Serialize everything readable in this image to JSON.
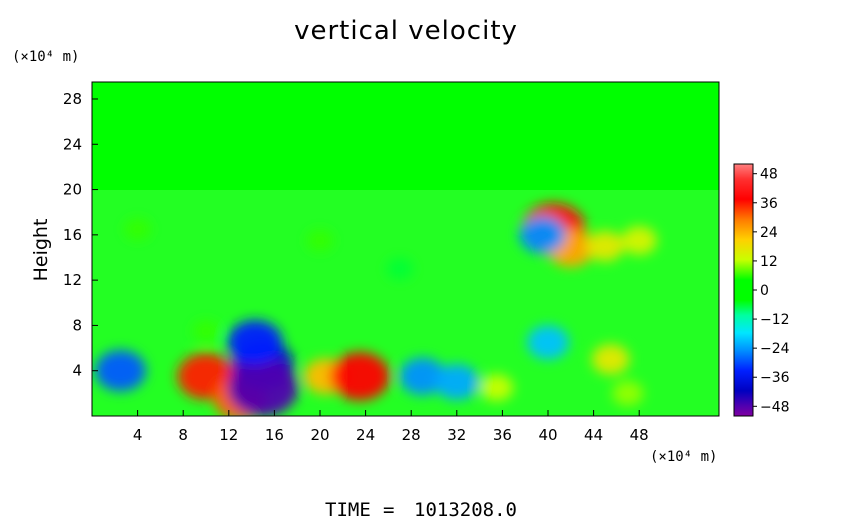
{
  "chart_data": {
    "type": "heatmap",
    "title": "vertical velocity",
    "ylabel": "Height",
    "x_unit_label": "(×10⁴ m)",
    "y_unit_label": "(×10⁴ m)",
    "x_ticks": [
      "4",
      "8",
      "12",
      "16",
      "20",
      "24",
      "28",
      "32",
      "36",
      "40",
      "44",
      "48"
    ],
    "x_tick_values": [
      4,
      8,
      12,
      16,
      20,
      24,
      28,
      32,
      36,
      40,
      44,
      48
    ],
    "xlim": [
      0,
      55
    ],
    "y_ticks": [
      "4",
      "8",
      "12",
      "16",
      "20",
      "24",
      "28"
    ],
    "y_tick_values": [
      4,
      8,
      12,
      16,
      20,
      24,
      28
    ],
    "ylim": [
      0,
      29.5
    ],
    "colorbar": {
      "ticks": [
        "48",
        "36",
        "24",
        "12",
        "0",
        "−12",
        "−24",
        "−36",
        "−48"
      ],
      "tick_values": [
        48,
        36,
        24,
        12,
        0,
        -12,
        -24,
        -36,
        -48
      ],
      "range": [
        -52,
        52
      ]
    },
    "background_value": 0,
    "features": [
      {
        "x": 2.5,
        "y": 4.0,
        "value": -28
      },
      {
        "x": 10.0,
        "y": 3.5,
        "value": 34
      },
      {
        "x": 13.0,
        "y": 1.5,
        "value": 30
      },
      {
        "x": 15.0,
        "y": 4.5,
        "value": -38
      },
      {
        "x": 15.0,
        "y": 2.5,
        "value": -46
      },
      {
        "x": 14.3,
        "y": 6.5,
        "value": -32
      },
      {
        "x": 20.5,
        "y": 3.5,
        "value": 22
      },
      {
        "x": 23.5,
        "y": 3.5,
        "value": 36
      },
      {
        "x": 20.0,
        "y": 15.5,
        "value": 6
      },
      {
        "x": 29.0,
        "y": 3.5,
        "value": -24
      },
      {
        "x": 32.0,
        "y": 3.0,
        "value": -22
      },
      {
        "x": 35.5,
        "y": 2.5,
        "value": 12
      },
      {
        "x": 40.5,
        "y": 16.5,
        "value": 40
      },
      {
        "x": 42.0,
        "y": 14.8,
        "value": 24
      },
      {
        "x": 39.5,
        "y": 16.0,
        "value": -24
      },
      {
        "x": 45.0,
        "y": 15.0,
        "value": 16
      },
      {
        "x": 48.0,
        "y": 15.5,
        "value": 14
      },
      {
        "x": 45.5,
        "y": 5.0,
        "value": 16
      },
      {
        "x": 47.0,
        "y": 2.0,
        "value": 10
      },
      {
        "x": 4.0,
        "y": 16.5,
        "value": 6
      },
      {
        "x": 10.0,
        "y": 7.5,
        "value": 6
      },
      {
        "x": 27.0,
        "y": 13.0,
        "value": -6
      },
      {
        "x": 40.0,
        "y": 6.5,
        "value": -20
      }
    ]
  },
  "footer": {
    "time_label": "TIME",
    "equals": "=",
    "time_value": "1013208.0"
  }
}
